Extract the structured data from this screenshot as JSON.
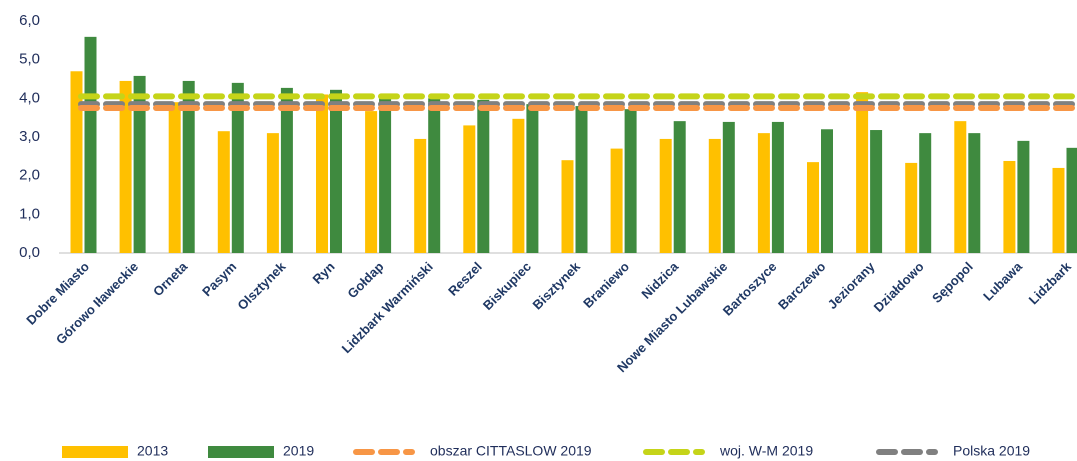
{
  "chart_data": {
    "type": "bar",
    "categories": [
      "Dobre Miasto",
      "Górowo Iławeckie",
      "Orneta",
      "Pasym",
      "Olsztynek",
      "Ryn",
      "Gołdap",
      "Lidzbark Warmiński",
      "Reszel",
      "Biskupiec",
      "Bisztynek",
      "Braniewo",
      "Nidzica",
      "Nowe Miasto Lubawskie",
      "Bartoszyce",
      "Barczewo",
      "Jeziorany",
      "Działdowo",
      "Sępopol",
      "Lubawa",
      "Lidzbark"
    ],
    "series": [
      {
        "name": "2013",
        "color": "#ffc000",
        "values": [
          4.7,
          4.45,
          3.9,
          3.15,
          3.1,
          4.1,
          3.67,
          2.95,
          3.3,
          3.47,
          2.4,
          2.7,
          2.95,
          2.95,
          3.1,
          2.35,
          4.16,
          2.33,
          3.41,
          2.38,
          2.2
        ]
      },
      {
        "name": "2019",
        "color": "#3f8a3f",
        "values": [
          5.59,
          4.58,
          4.45,
          4.4,
          4.27,
          4.22,
          4.0,
          4.0,
          3.96,
          3.85,
          3.8,
          3.72,
          3.41,
          3.39,
          3.39,
          3.2,
          3.18,
          3.1,
          3.1,
          2.9,
          2.72
        ]
      }
    ],
    "reference_lines": [
      {
        "name": "obszar CITTASLOW 2019",
        "color": "#f79646",
        "value": 3.75
      },
      {
        "name": "woj. W-M 2019",
        "color": "#c5d419",
        "value": 4.05
      },
      {
        "name": "Polska 2019",
        "color": "#808080",
        "value": 3.85
      }
    ],
    "ylim": [
      0,
      6
    ],
    "yticks": [
      {
        "value": 0,
        "label": "0,0"
      },
      {
        "value": 1,
        "label": "1,0"
      },
      {
        "value": 2,
        "label": "2,0"
      },
      {
        "value": 3,
        "label": "3,0"
      },
      {
        "value": 4,
        "label": "4,0"
      },
      {
        "value": 5,
        "label": "5,0"
      },
      {
        "value": 6,
        "label": "6,0"
      }
    ],
    "grid": false
  }
}
